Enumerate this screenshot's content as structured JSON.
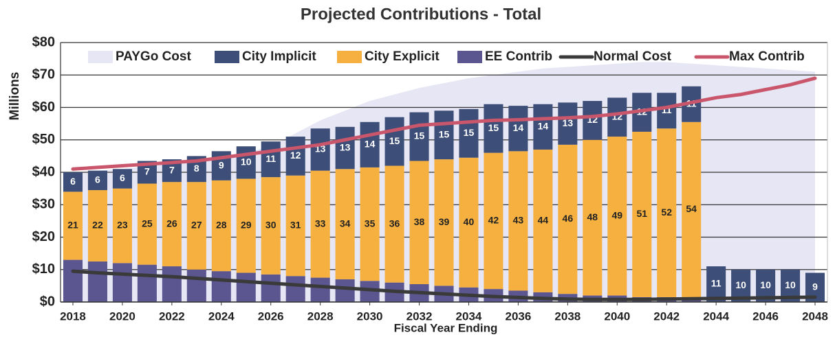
{
  "chart_data": {
    "type": "bar",
    "title": "Projected Contributions - Total",
    "x_label": "Fiscal Year Ending",
    "y_label": "Millions",
    "x": [
      2018,
      2019,
      2020,
      2021,
      2022,
      2023,
      2024,
      2025,
      2026,
      2027,
      2028,
      2029,
      2030,
      2031,
      2032,
      2033,
      2034,
      2035,
      2036,
      2037,
      2038,
      2039,
      2040,
      2041,
      2042,
      2043,
      2044,
      2045,
      2046,
      2047,
      2048
    ],
    "xlim": [
      2017.5,
      2048.5
    ],
    "xticks": [
      2018,
      2020,
      2022,
      2024,
      2026,
      2028,
      2030,
      2032,
      2034,
      2036,
      2038,
      2040,
      2042,
      2044,
      2046,
      2048
    ],
    "ylim": [
      0,
      80
    ],
    "yticks": [
      {
        "value": 0,
        "label": "$0"
      },
      {
        "value": 10,
        "label": "$10"
      },
      {
        "value": 20,
        "label": "$20"
      },
      {
        "value": 30,
        "label": "$30"
      },
      {
        "value": 40,
        "label": "$40"
      },
      {
        "value": 50,
        "label": "$50"
      },
      {
        "value": 60,
        "label": "$60"
      },
      {
        "value": 70,
        "label": "$70"
      },
      {
        "value": 80,
        "label": "$80"
      }
    ],
    "grid": true,
    "series": [
      {
        "name": "PAYGo Cost",
        "type": "area",
        "color": "#e6e6f5",
        "values": [
          40,
          40.5,
          41,
          42,
          43,
          43.5,
          44,
          46,
          48,
          52,
          56,
          59,
          62,
          64,
          66,
          67.5,
          69,
          70,
          71,
          72,
          72.5,
          73,
          73.5,
          74,
          74,
          73.5,
          73,
          72.5,
          72,
          71.5,
          71
        ]
      },
      {
        "name": "City Implicit",
        "type": "bar",
        "color": "#3d4e78",
        "values": [
          6,
          6,
          6,
          7,
          7,
          8,
          9,
          10,
          11,
          12,
          13,
          13,
          14,
          15,
          15,
          15,
          15,
          15,
          14,
          14,
          13,
          12,
          12,
          12,
          11,
          11,
          11,
          10,
          10,
          10,
          9
        ]
      },
      {
        "name": "City Explicit",
        "type": "bar",
        "color": "#f6b040",
        "values": [
          21,
          22,
          23,
          25,
          26,
          27,
          28,
          29,
          30,
          31,
          33,
          34,
          35,
          36,
          38,
          39,
          40,
          42,
          43,
          44,
          46,
          48,
          49,
          51,
          52,
          54,
          null,
          null,
          null,
          null,
          null
        ]
      },
      {
        "name": "EE Contrib",
        "type": "bar",
        "color": "#5b5590",
        "values": [
          13,
          12.5,
          12,
          11.5,
          11,
          10,
          9.5,
          9,
          8.5,
          8,
          7.5,
          7,
          6.5,
          6,
          5.5,
          5,
          4.5,
          4,
          3.5,
          3,
          2.5,
          2,
          2,
          1.5,
          1.5,
          1.5,
          null,
          null,
          null,
          null,
          null
        ]
      },
      {
        "name": "Normal Cost",
        "type": "line",
        "color": "#3a3a3a",
        "values": [
          9.5,
          9,
          8.6,
          8.2,
          7.8,
          7.3,
          6.8,
          6.3,
          5.8,
          5.3,
          4.8,
          4.3,
          3.8,
          3.3,
          2.9,
          2.5,
          2.1,
          1.7,
          1.4,
          1.1,
          0.9,
          0.8,
          0.8,
          0.8,
          0.9,
          1,
          1.1,
          1.2,
          1.3,
          1.4,
          1.5
        ]
      },
      {
        "name": "Max Contrib",
        "type": "line",
        "color": "#c9566b",
        "values": [
          41,
          41.5,
          42,
          42.5,
          43,
          43.5,
          44.5,
          45.5,
          46.5,
          47.5,
          48.5,
          50,
          51.5,
          53,
          54.5,
          55,
          55.5,
          56,
          56.2,
          56.5,
          56.8,
          57.2,
          58,
          59,
          60,
          61.5,
          63,
          64,
          65.5,
          67,
          69
        ]
      }
    ]
  }
}
